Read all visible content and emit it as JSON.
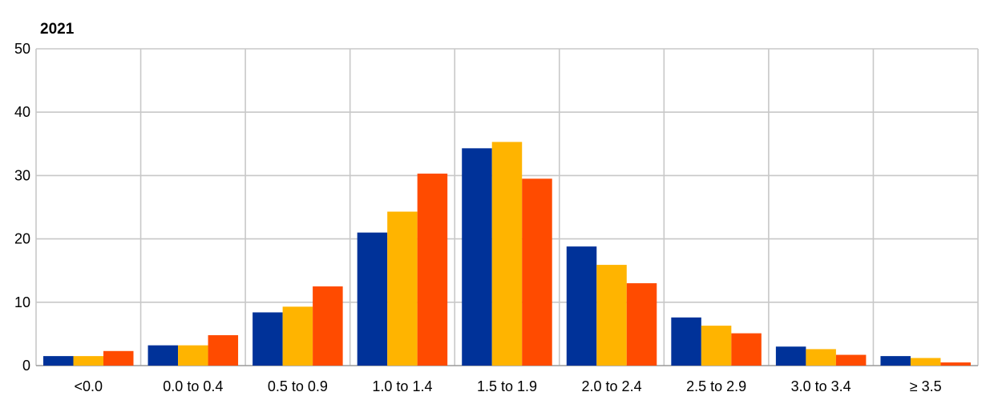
{
  "chart_data": {
    "type": "bar",
    "title": "2021",
    "xlabel": "",
    "ylabel": "",
    "ylim": [
      0,
      50
    ],
    "y_ticks": [
      0,
      10,
      20,
      30,
      40,
      50
    ],
    "grid": true,
    "categories": [
      "<0.0",
      "0.0 to 0.4",
      "0.5 to 0.9",
      "1.0 to 1.4",
      "1.5 to 1.9",
      "2.0 to 2.4",
      "2.5 to 2.9",
      "3.0 to 3.4",
      "≥ 3.5"
    ],
    "series": [
      {
        "color": "#003299",
        "values": [
          1.5,
          3.2,
          8.4,
          21.0,
          34.3,
          18.8,
          7.6,
          3.0,
          1.5
        ]
      },
      {
        "color": "#FFB400",
        "values": [
          1.5,
          3.2,
          9.3,
          24.3,
          35.3,
          15.9,
          6.3,
          2.6,
          1.2
        ]
      },
      {
        "color": "#FF4B00",
        "values": [
          2.3,
          4.8,
          12.5,
          30.3,
          29.5,
          13.0,
          5.1,
          1.7,
          0.5
        ]
      }
    ]
  }
}
